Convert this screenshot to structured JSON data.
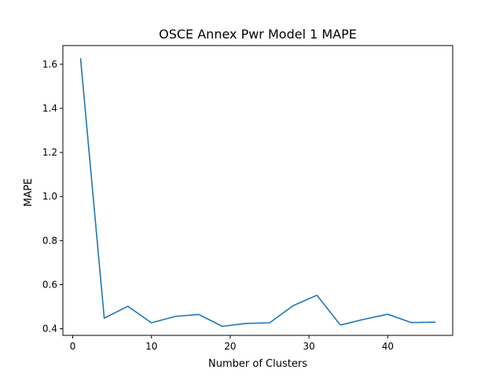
{
  "chart_data": {
    "type": "line",
    "title": "OSCE Annex Pwr Model 1 MAPE",
    "xlabel": "Number of Clusters",
    "ylabel": "MAPE",
    "xlim": [
      -1.25,
      48.25
    ],
    "ylim": [
      0.37,
      1.685
    ],
    "xticks": [
      0,
      10,
      20,
      30,
      40
    ],
    "yticks": [
      0.4,
      0.6,
      0.8,
      1.0,
      1.2,
      1.4,
      1.6
    ],
    "xtick_labels": [
      "0",
      "10",
      "20",
      "30",
      "40"
    ],
    "ytick_labels": [
      "0.4",
      "0.6",
      "0.8",
      "1.0",
      "1.2",
      "1.4",
      "1.6"
    ],
    "grid": false,
    "series": [
      {
        "color": "#1f77b4",
        "x": [
          1,
          4,
          7,
          10,
          13,
          16,
          19,
          22,
          25,
          28,
          31,
          34,
          37,
          40,
          43,
          46
        ],
        "values": [
          1.625,
          0.448,
          0.502,
          0.427,
          0.456,
          0.465,
          0.411,
          0.424,
          0.427,
          0.505,
          0.552,
          0.417,
          0.443,
          0.466,
          0.428,
          0.43
        ]
      }
    ]
  }
}
